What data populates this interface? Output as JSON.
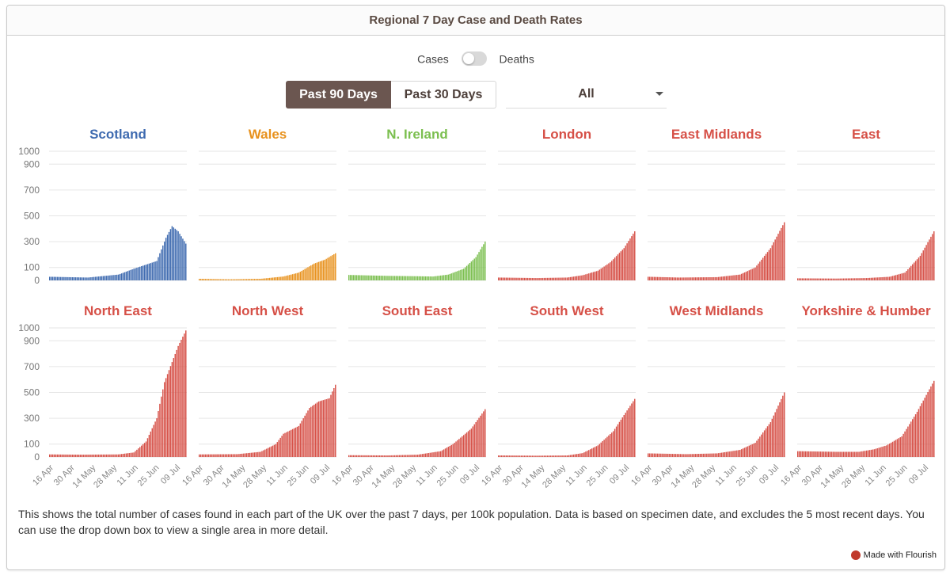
{
  "header": {
    "title": "Regional 7 Day Case and Death Rates"
  },
  "toggle": {
    "left_label": "Cases",
    "right_label": "Deaths",
    "state": "Cases"
  },
  "range_buttons": {
    "active": "Past 90 Days",
    "inactive": "Past 30 Days"
  },
  "dropdown": {
    "selected": "All"
  },
  "note": "This shows the total number of cases found in each part of the UK over the past 7 days, per 100k population. Data is based on specimen date, and excludes the 5 most recent days. You can use the drop down box to view a single area in more detail.",
  "footer": {
    "flourish": "Made with Flourish"
  },
  "chart_data": {
    "type": "bar",
    "ylim": [
      0,
      1000
    ],
    "y_ticks": [
      0,
      100,
      300,
      500,
      700,
      900,
      1000
    ],
    "x_tick_labels": [
      "16 Apr",
      "30 Apr",
      "14 May",
      "28 May",
      "11 Jun",
      "25 Jun",
      "09 Jul"
    ],
    "grid": true,
    "days": 90,
    "panels": [
      {
        "name": "Scotland",
        "color": "#3f6bb0",
        "keypoints": [
          [
            0,
            28
          ],
          [
            25,
            22
          ],
          [
            45,
            45
          ],
          [
            55,
            90
          ],
          [
            70,
            150
          ],
          [
            76,
            330
          ],
          [
            80,
            420
          ],
          [
            84,
            380
          ],
          [
            89,
            285
          ]
        ]
      },
      {
        "name": "Wales",
        "color": "#e8921e",
        "keypoints": [
          [
            0,
            12
          ],
          [
            20,
            8
          ],
          [
            40,
            12
          ],
          [
            55,
            30
          ],
          [
            65,
            60
          ],
          [
            75,
            130
          ],
          [
            82,
            160
          ],
          [
            89,
            210
          ]
        ]
      },
      {
        "name": "N. Ireland",
        "color": "#7bbf4f",
        "keypoints": [
          [
            0,
            42
          ],
          [
            25,
            35
          ],
          [
            45,
            32
          ],
          [
            55,
            30
          ],
          [
            65,
            45
          ],
          [
            75,
            90
          ],
          [
            83,
            180
          ],
          [
            89,
            300
          ]
        ]
      },
      {
        "name": "London",
        "color": "#d65047",
        "keypoints": [
          [
            0,
            22
          ],
          [
            25,
            18
          ],
          [
            45,
            22
          ],
          [
            55,
            40
          ],
          [
            65,
            75
          ],
          [
            73,
            140
          ],
          [
            82,
            250
          ],
          [
            89,
            380
          ]
        ]
      },
      {
        "name": "East Midlands",
        "color": "#d65047",
        "keypoints": [
          [
            0,
            28
          ],
          [
            20,
            22
          ],
          [
            45,
            25
          ],
          [
            60,
            45
          ],
          [
            70,
            100
          ],
          [
            80,
            250
          ],
          [
            89,
            450
          ]
        ]
      },
      {
        "name": "East",
        "color": "#d65047",
        "keypoints": [
          [
            0,
            16
          ],
          [
            25,
            14
          ],
          [
            45,
            18
          ],
          [
            60,
            28
          ],
          [
            70,
            60
          ],
          [
            80,
            190
          ],
          [
            89,
            380
          ]
        ]
      },
      {
        "name": "North East",
        "color": "#d65047",
        "keypoints": [
          [
            0,
            20
          ],
          [
            20,
            18
          ],
          [
            45,
            20
          ],
          [
            55,
            35
          ],
          [
            63,
            120
          ],
          [
            70,
            300
          ],
          [
            75,
            580
          ],
          [
            84,
            860
          ],
          [
            89,
            980
          ]
        ]
      },
      {
        "name": "North West",
        "color": "#d65047",
        "keypoints": [
          [
            0,
            20
          ],
          [
            25,
            22
          ],
          [
            40,
            40
          ],
          [
            50,
            100
          ],
          [
            55,
            180
          ],
          [
            65,
            240
          ],
          [
            72,
            380
          ],
          [
            78,
            430
          ],
          [
            85,
            455
          ],
          [
            89,
            560
          ]
        ]
      },
      {
        "name": "South East",
        "color": "#d65047",
        "keypoints": [
          [
            0,
            14
          ],
          [
            25,
            12
          ],
          [
            45,
            18
          ],
          [
            60,
            45
          ],
          [
            68,
            100
          ],
          [
            80,
            220
          ],
          [
            89,
            370
          ]
        ]
      },
      {
        "name": "South West",
        "color": "#d65047",
        "keypoints": [
          [
            0,
            12
          ],
          [
            25,
            10
          ],
          [
            45,
            12
          ],
          [
            55,
            30
          ],
          [
            65,
            90
          ],
          [
            75,
            200
          ],
          [
            89,
            450
          ]
        ]
      },
      {
        "name": "West Midlands",
        "color": "#d65047",
        "keypoints": [
          [
            0,
            28
          ],
          [
            25,
            22
          ],
          [
            45,
            28
          ],
          [
            60,
            55
          ],
          [
            70,
            110
          ],
          [
            80,
            270
          ],
          [
            89,
            500
          ]
        ]
      },
      {
        "name": "Yorkshire & Humber",
        "color": "#d65047",
        "keypoints": [
          [
            0,
            45
          ],
          [
            25,
            40
          ],
          [
            40,
            40
          ],
          [
            50,
            60
          ],
          [
            58,
            90
          ],
          [
            68,
            160
          ],
          [
            78,
            350
          ],
          [
            89,
            590
          ]
        ]
      }
    ]
  }
}
